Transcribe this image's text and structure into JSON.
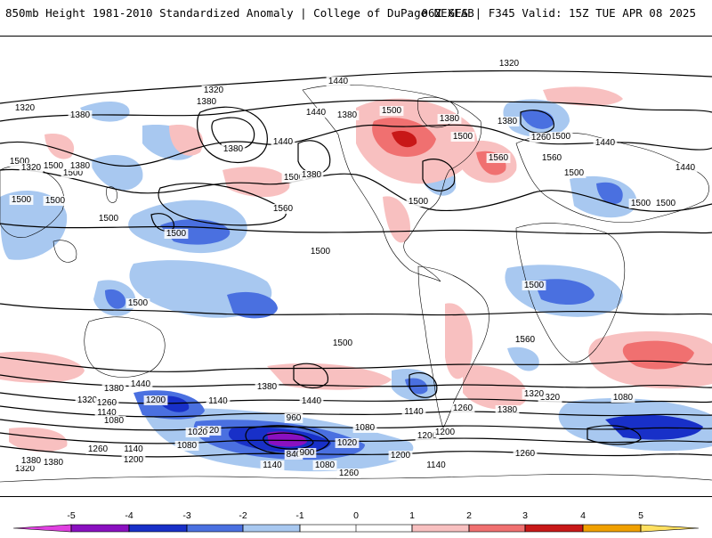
{
  "header": {
    "title": "850mb Height 1981-2010 Standardized Anomaly | College of DuPage NEXLAB",
    "run_info": "06Z GFS | F345 Valid: 15Z TUE APR 08 2025"
  },
  "colorbar": {
    "ticks": [
      "-5",
      "-4",
      "-3",
      "-2",
      "-1",
      "0",
      "1",
      "2",
      "3",
      "4",
      "5"
    ],
    "colors": [
      "#e040e0",
      "#8a10c0",
      "#1830c8",
      "#4a70e0",
      "#a8c8f0",
      "#ffffff",
      "#f8c0c0",
      "#f07070",
      "#c81818",
      "#f0a000",
      "#ffe060"
    ]
  },
  "map": {
    "contour_labels": [
      "1320",
      "1320",
      "1320",
      "1380",
      "1380",
      "1380",
      "1380",
      "1440",
      "1380",
      "1440",
      "1500",
      "1500",
      "1500",
      "1500",
      "1380",
      "1440",
      "1500",
      "1500",
      "1560",
      "1500",
      "1260",
      "1440",
      "1560",
      "1500",
      "1440",
      "1500",
      "1500",
      "1500",
      "1500",
      "1500",
      "1380",
      "1320",
      "1380",
      "1500",
      "1500",
      "1560",
      "1500",
      "1500",
      "1440",
      "1500",
      "1560",
      "1440",
      "1380",
      "1320",
      "1260",
      "1200",
      "1140",
      "1080",
      "1020",
      "960",
      "840",
      "900",
      "1020",
      "1080",
      "1140",
      "1200",
      "1260",
      "1200",
      "1140",
      "1080",
      "1140",
      "1260",
      "1320",
      "1440",
      "1380",
      "1380",
      "1320",
      "1260",
      "1200",
      "1140",
      "1080",
      "1020",
      "1140",
      "1080",
      "1200",
      "1260",
      "1320",
      "1380",
      "1500",
      "1380"
    ]
  }
}
